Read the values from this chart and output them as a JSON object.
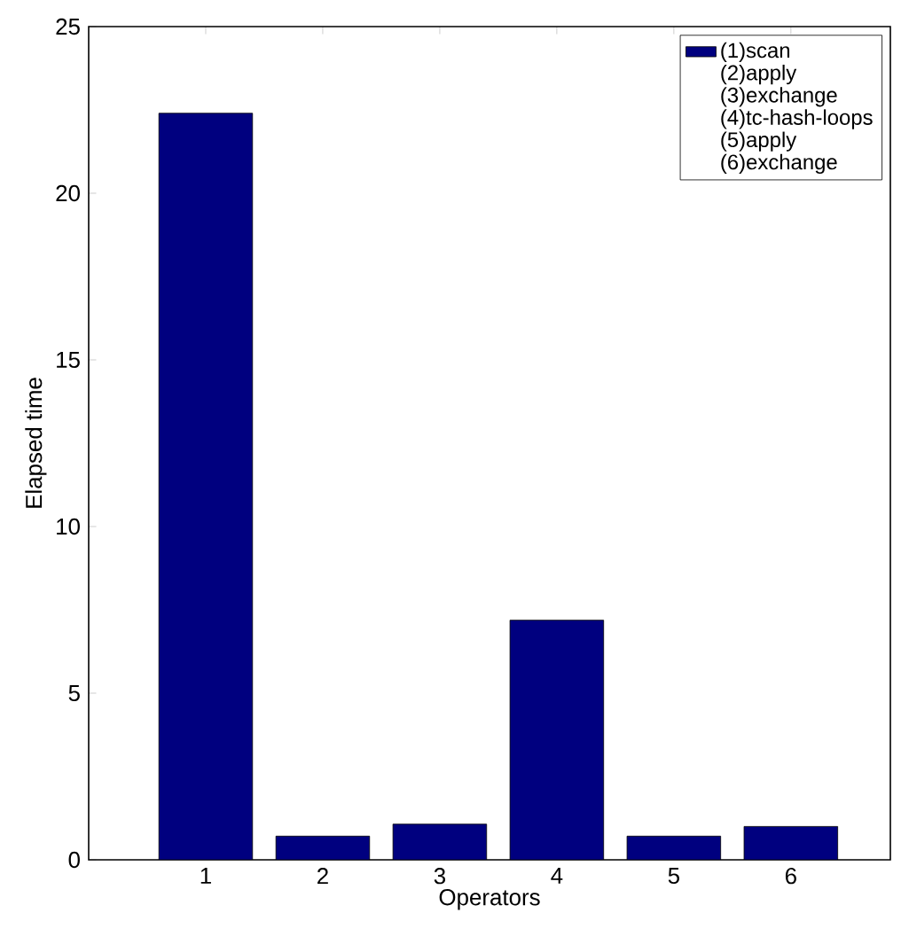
{
  "chart_data": {
    "type": "bar",
    "xlabel": "Operators",
    "ylabel": "Elapsed time",
    "categories": [
      "1",
      "2",
      "3",
      "4",
      "5",
      "6"
    ],
    "series": [
      {
        "name": "(1)scan",
        "color": "#00007f",
        "values": [
          22.4,
          0.71,
          1.07,
          7.19,
          0.71,
          1.0
        ]
      }
    ],
    "ylim": [
      0,
      25
    ],
    "yticks": [
      0,
      5,
      10,
      15,
      20,
      25
    ],
    "legend": "top right",
    "annotations": [
      "(2)apply",
      "(3)exchange",
      "(4)tc-hash-loops",
      "(5)apply",
      "(6)exchange"
    ]
  }
}
